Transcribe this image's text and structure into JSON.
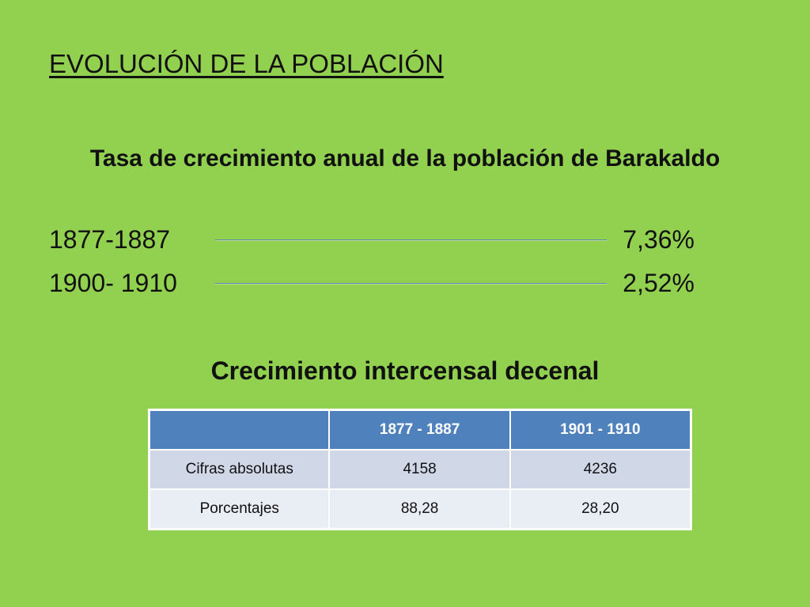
{
  "slide": {
    "title": "EVOLUCIÓN DE LA POBLACIÓN",
    "rate_heading": "Tasa de crecimiento anual de la población de Barakaldo",
    "rates": [
      {
        "period": "1877-1887",
        "value": "7,36%"
      },
      {
        "period": "1900- 1910",
        "value": "2,52%"
      }
    ],
    "table_heading": "Crecimiento intercensal decenal",
    "table": {
      "headers": [
        "",
        "1877 - 1887",
        "1901 - 1910"
      ],
      "rows": [
        [
          "Cifras absolutas",
          "4158",
          "4236"
        ],
        [
          "Porcentajes",
          "88,28",
          "28,20"
        ]
      ]
    }
  },
  "colors": {
    "background": "#92d050",
    "table_header": "#4f81bd",
    "table_row_odd": "#d0d8e8",
    "table_row_even": "#e9edf4",
    "connector_line": "#5b86b5"
  }
}
